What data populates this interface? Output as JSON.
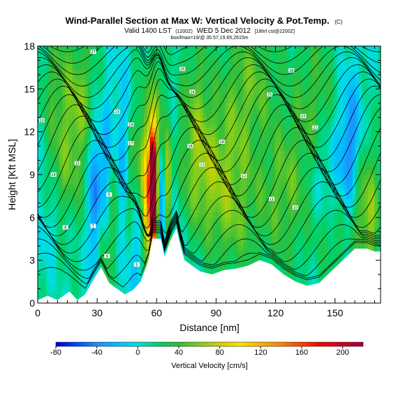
{
  "chart_data": {
    "type": "heatmap",
    "title": "Wind-Parallel Section at Max W: Vertical Velocity & Pot.Temp.",
    "title_mark": "(C)",
    "valid_line": "Valid 1400 LST",
    "valid_utc": "(1200Z)",
    "valid_day": "WED 5 Dec 2012",
    "forecast_info": "[18hrl cst@2200Z]",
    "info_line": "box/lmax=19/@ 35.57,19.65,2615m",
    "xlabel": "Distance [nm]",
    "ylabel": "Height [Kft MSL]",
    "xlim": [
      0,
      173
    ],
    "ylim": [
      0,
      18
    ],
    "x_ticks": [
      0,
      30,
      60,
      90,
      120,
      150
    ],
    "y_ticks": [
      0,
      3,
      6,
      9,
      12,
      15,
      18
    ],
    "colorbar": {
      "label": "Vertical Velocity [cm/s]",
      "range": [
        -80,
        220
      ],
      "tick_values": [
        -80,
        -40,
        0,
        40,
        80,
        120,
        160,
        200
      ],
      "stops": [
        {
          "value": -80,
          "color": "#0000cc"
        },
        {
          "value": -60,
          "color": "#0044ff"
        },
        {
          "value": -40,
          "color": "#1e90ff"
        },
        {
          "value": -20,
          "color": "#00bfff"
        },
        {
          "value": 0,
          "color": "#00e0e0"
        },
        {
          "value": 20,
          "color": "#00d26a"
        },
        {
          "value": 40,
          "color": "#2fbe3c"
        },
        {
          "value": 60,
          "color": "#7fce1c"
        },
        {
          "value": 80,
          "color": "#d2d000"
        },
        {
          "value": 100,
          "color": "#ffe400"
        },
        {
          "value": 120,
          "color": "#ffb000"
        },
        {
          "value": 140,
          "color": "#ff8000"
        },
        {
          "value": 160,
          "color": "#ff4000"
        },
        {
          "value": 180,
          "color": "#ee0000"
        },
        {
          "value": 200,
          "color": "#cc0022"
        },
        {
          "value": 220,
          "color": "#990033"
        }
      ]
    },
    "terrain_profile": [
      {
        "x": 0,
        "z": 0.2
      },
      {
        "x": 5,
        "z": 0.5
      },
      {
        "x": 10,
        "z": 0.2
      },
      {
        "x": 16,
        "z": 0.8
      },
      {
        "x": 20,
        "z": 0.2
      },
      {
        "x": 24,
        "z": 0.6
      },
      {
        "x": 28,
        "z": 1.6
      },
      {
        "x": 32,
        "z": 2.5
      },
      {
        "x": 36,
        "z": 1.4
      },
      {
        "x": 40,
        "z": 1.0
      },
      {
        "x": 44,
        "z": 0.6
      },
      {
        "x": 48,
        "z": 0.9
      },
      {
        "x": 52,
        "z": 1.5
      },
      {
        "x": 56,
        "z": 3.0
      },
      {
        "x": 58,
        "z": 4.5
      },
      {
        "x": 62,
        "z": 4.5
      },
      {
        "x": 64,
        "z": 3.2
      },
      {
        "x": 67,
        "z": 4.4
      },
      {
        "x": 70,
        "z": 5.2
      },
      {
        "x": 72,
        "z": 4.0
      },
      {
        "x": 74,
        "z": 3.0
      },
      {
        "x": 78,
        "z": 2.6
      },
      {
        "x": 82,
        "z": 2.2
      },
      {
        "x": 88,
        "z": 2.0
      },
      {
        "x": 94,
        "z": 2.3
      },
      {
        "x": 100,
        "z": 2.4
      },
      {
        "x": 106,
        "z": 2.6
      },
      {
        "x": 112,
        "z": 3.0
      },
      {
        "x": 118,
        "z": 2.7
      },
      {
        "x": 124,
        "z": 2.0
      },
      {
        "x": 130,
        "z": 1.5
      },
      {
        "x": 136,
        "z": 1.2
      },
      {
        "x": 142,
        "z": 1.4
      },
      {
        "x": 148,
        "z": 2.2
      },
      {
        "x": 154,
        "z": 3.0
      },
      {
        "x": 160,
        "z": 3.8
      },
      {
        "x": 166,
        "z": 3.8
      },
      {
        "x": 170,
        "z": 3.6
      },
      {
        "x": 173,
        "z": 3.6
      }
    ],
    "velocity_features": [
      {
        "x": 58.5,
        "z": 7.5,
        "w": 210,
        "sx": 1.2,
        "sz": 2.5
      },
      {
        "x": 57.8,
        "z": 9.6,
        "w": 140,
        "sx": 1.0,
        "sz": 1.6
      },
      {
        "x": 56.5,
        "z": 6.8,
        "w": 110,
        "sx": 2.2,
        "sz": 3.2
      },
      {
        "x": 66.0,
        "z": 8.0,
        "w": 85,
        "sx": 2.0,
        "sz": 2.8
      },
      {
        "x": 62.5,
        "z": 7.0,
        "w": -75,
        "sx": 1.8,
        "sz": 3.0
      },
      {
        "x": 68.5,
        "z": 7.5,
        "w": -45,
        "sx": 1.6,
        "sz": 3.0
      },
      {
        "x": 60.0,
        "z": 13.0,
        "w": 50,
        "sx": 2.5,
        "sz": 3.5
      },
      {
        "x": 29.0,
        "z": 7.0,
        "w": -60,
        "sx": 2.2,
        "sz": 4.0
      },
      {
        "x": 32.0,
        "z": 4.0,
        "w": 40,
        "sx": 2.0,
        "sz": 2.5
      },
      {
        "x": 35.0,
        "z": 9.0,
        "w": -40,
        "sx": 2.5,
        "sz": 4.0
      },
      {
        "x": 38.0,
        "z": 6.0,
        "w": 45,
        "sx": 2.5,
        "sz": 3.5
      },
      {
        "x": 43.0,
        "z": 9.0,
        "w": -35,
        "sx": 3.0,
        "sz": 5.0
      },
      {
        "x": 47.0,
        "z": 7.5,
        "w": 40,
        "sx": 2.5,
        "sz": 4.0
      },
      {
        "x": 50.0,
        "z": 4.0,
        "w": -40,
        "sx": 3.0,
        "sz": 3.0
      },
      {
        "x": 53.0,
        "z": 10.0,
        "w": 45,
        "sx": 2.5,
        "sz": 4.0
      },
      {
        "x": 12.0,
        "z": 9.0,
        "w": 35,
        "sx": 5.0,
        "sz": 4.0
      },
      {
        "x": 20.0,
        "z": 12.0,
        "w": 30,
        "sx": 4.0,
        "sz": 4.0
      },
      {
        "x": 10.0,
        "z": 16.0,
        "w": 30,
        "sx": 6.0,
        "sz": 3.0
      },
      {
        "x": 25.0,
        "z": 15.0,
        "w": 25,
        "sx": 5.0,
        "sz": 3.0
      },
      {
        "x": 8.0,
        "z": 5.5,
        "w": -20,
        "sx": 6.0,
        "sz": 2.0
      },
      {
        "x": 85.0,
        "z": 9.0,
        "w": 40,
        "sx": 10.0,
        "sz": 3.0
      },
      {
        "x": 80.0,
        "z": 14.0,
        "w": 35,
        "sx": 6.0,
        "sz": 4.0
      },
      {
        "x": 100.0,
        "z": 11.0,
        "w": 30,
        "sx": 8.0,
        "sz": 5.0
      },
      {
        "x": 110.0,
        "z": 16.0,
        "w": 30,
        "sx": 10.0,
        "sz": 3.0
      },
      {
        "x": 125.0,
        "z": 8.5,
        "w": 35,
        "sx": 10.0,
        "sz": 3.5
      },
      {
        "x": 140.0,
        "z": 14.0,
        "w": 35,
        "sx": 8.0,
        "sz": 4.0
      },
      {
        "x": 145.0,
        "z": 9.0,
        "w": -30,
        "sx": 8.0,
        "sz": 3.0
      },
      {
        "x": 158.0,
        "z": 11.0,
        "w": -50,
        "sx": 4.0,
        "sz": 3.5
      },
      {
        "x": 162.0,
        "z": 7.0,
        "w": 40,
        "sx": 3.0,
        "sz": 3.0
      },
      {
        "x": 168.0,
        "z": 6.0,
        "w": 50,
        "sx": 3.0,
        "sz": 4.0
      },
      {
        "x": 150.0,
        "z": 5.0,
        "w": 25,
        "sx": 6.0,
        "sz": 2.5
      },
      {
        "x": 120.0,
        "z": 5.0,
        "w": 10,
        "sx": 20.0,
        "sz": 3.0
      },
      {
        "x": 95.0,
        "z": 5.0,
        "w": 15,
        "sx": 10.0,
        "sz": 2.5
      }
    ],
    "theta_isentropes": [
      {
        "label": "5",
        "base_z": 1.5,
        "amp": 1.0,
        "lx": 50,
        "lz": 2.7
      },
      {
        "label": "6",
        "base_z": 2.3,
        "amp": 1.2,
        "lx": 35,
        "lz": 3.3
      },
      {
        "label": "7",
        "base_z": 3.1,
        "amp": 1.4,
        "lx": 28,
        "lz": 5.4
      },
      {
        "label": "8",
        "base_z": 3.9,
        "amp": 1.6,
        "lx": 14,
        "lz": 5.3
      },
      {
        "label": "9",
        "base_z": 4.7,
        "amp": 1.8,
        "lx": 36,
        "lz": 7.6
      },
      {
        "label": "10",
        "base_z": 5.5,
        "amp": 2.0,
        "lx": 130,
        "lz": 6.7
      },
      {
        "label": "11",
        "base_z": 6.3,
        "amp": 2.2,
        "lx": 118,
        "lz": 7.3
      },
      {
        "label": "12",
        "base_z": 7.1,
        "amp": 2.4,
        "lx": 104,
        "lz": 8.9
      },
      {
        "label": "13",
        "base_z": 7.9,
        "amp": 2.6,
        "lx": 83,
        "lz": 9.7
      },
      {
        "label": "14",
        "base_z": 8.7,
        "amp": 2.7,
        "lx": 8,
        "lz": 9.0
      },
      {
        "label": "15",
        "base_z": 9.5,
        "amp": 2.8,
        "lx": 20,
        "lz": 9.8
      },
      {
        "label": "16",
        "base_z": 10.3,
        "amp": 2.8,
        "lx": 77,
        "lz": 11.0
      },
      {
        "label": "17",
        "base_z": 11.1,
        "amp": 2.8,
        "lx": 47,
        "lz": 11.2
      },
      {
        "label": "18",
        "base_z": 11.9,
        "amp": 2.7,
        "lx": 93,
        "lz": 11.3
      },
      {
        "label": "19",
        "base_z": 12.6,
        "amp": 2.6,
        "lx": 47,
        "lz": 12.5
      },
      {
        "label": "20",
        "base_z": 13.3,
        "amp": 2.4,
        "lx": 2,
        "lz": 12.8
      },
      {
        "label": "21",
        "base_z": 14.0,
        "amp": 2.2,
        "lx": 140,
        "lz": 12.3
      },
      {
        "label": "22",
        "base_z": 14.7,
        "amp": 2.0,
        "lx": 134,
        "lz": 13.1
      },
      {
        "label": "23",
        "base_z": 15.4,
        "amp": 1.8,
        "lx": 40,
        "lz": 13.4
      },
      {
        "label": "24",
        "base_z": 16.0,
        "amp": 1.6,
        "lx": 78,
        "lz": 14.8
      },
      {
        "label": "25",
        "base_z": 16.6,
        "amp": 1.4,
        "lx": 117,
        "lz": 14.6
      },
      {
        "label": "26",
        "base_z": 17.2,
        "amp": 1.2,
        "lx": 73,
        "lz": 16.4
      },
      {
        "label": "27",
        "base_z": 17.8,
        "amp": 1.0,
        "lx": 28,
        "lz": 17.6
      },
      {
        "label": "28",
        "base_z": 18.4,
        "amp": 0.8,
        "lx": 128,
        "lz": 16.3
      }
    ]
  }
}
